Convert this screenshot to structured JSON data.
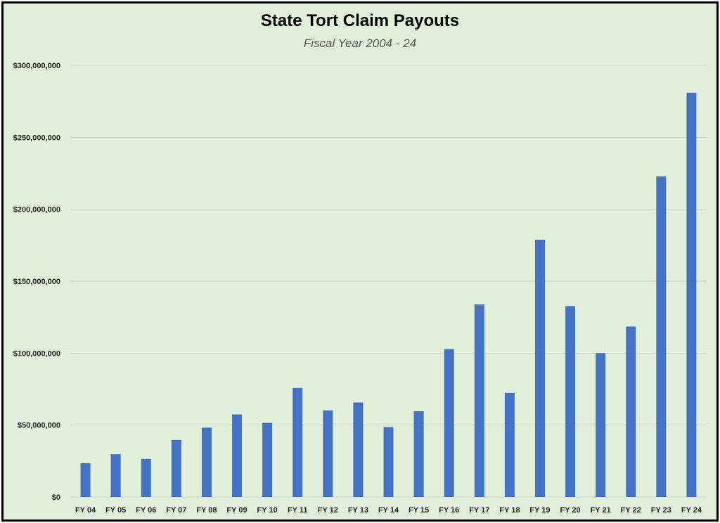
{
  "chart_data": {
    "type": "bar",
    "title": "State Tort Claim Payouts",
    "subtitle": "Fiscal Year 2004 - 24",
    "xlabel": "",
    "ylabel": "",
    "ylim": [
      0,
      300000000
    ],
    "yticks": [
      0,
      50000000,
      100000000,
      150000000,
      200000000,
      250000000,
      300000000
    ],
    "ytick_labels": [
      "$0",
      "$50,000,000",
      "$100,000,000",
      "$150,000,000",
      "$200,000,000",
      "$250,000,000",
      "$300,000,000"
    ],
    "grid": true,
    "legend": "none",
    "bar_color": "#4472c4",
    "background_color": "#e2efda",
    "categories": [
      "FY 04",
      "FY 05",
      "FY 06",
      "FY 07",
      "FY 08",
      "FY 09",
      "FY 10",
      "FY 11",
      "FY 12",
      "FY 13",
      "FY 14",
      "FY 15",
      "FY 16",
      "FY 17",
      "FY 18",
      "FY 19",
      "FY 20",
      "FY 21",
      "FY 22",
      "FY 23",
      "FY 24"
    ],
    "values": [
      23500000,
      29700000,
      26500000,
      39700000,
      48200000,
      57400000,
      51500000,
      75800000,
      60200000,
      65700000,
      48600000,
      59600000,
      102800000,
      133800000,
      72400000,
      178800000,
      132700000,
      100000000,
      118500000,
      222800000,
      281000000
    ]
  }
}
